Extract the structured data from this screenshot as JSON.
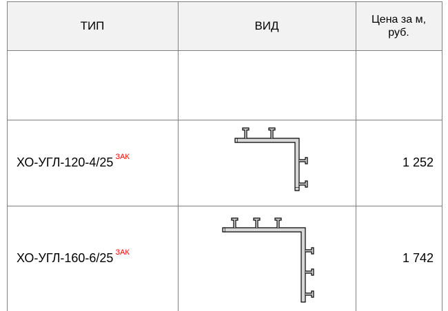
{
  "header": {
    "type_label": "ТИП",
    "view_label": "ВИД",
    "price_label_line1": "Цена за м,",
    "price_label_line2": "руб."
  },
  "rows": [
    {
      "type": "",
      "tag": "",
      "price": ""
    },
    {
      "type": "ХО-УГЛ-120-4/25",
      "tag": "ЗАК",
      "price": "1 252",
      "profile_icon": "corner-profile-4-ribs-icon"
    },
    {
      "type": "ХО-УГЛ-160-6/25",
      "tag": "ЗАК",
      "price": "1 742",
      "profile_icon": "corner-profile-6-ribs-icon"
    }
  ],
  "colors": {
    "header_bg": "#f2f2f2",
    "grid_line": "#7f7f7f",
    "tag": "#ff0000",
    "text": "#000000"
  }
}
